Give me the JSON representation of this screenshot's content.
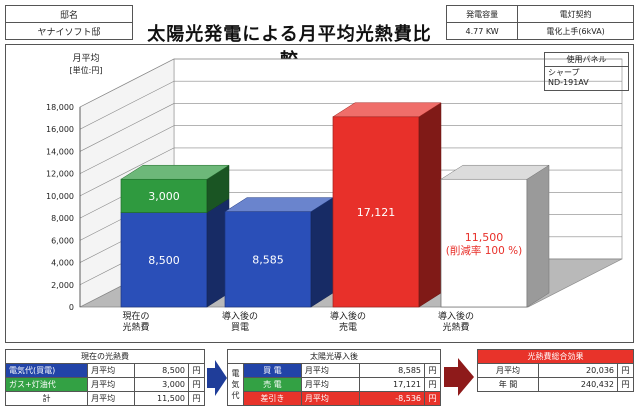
{
  "house": {
    "label": "邸名",
    "name": "ヤナイソフト邸"
  },
  "title": "太陽光発電による月平均光熱費比較",
  "capacity": {
    "label": "発電容量",
    "value": "4.77 KW",
    "contract_label": "電灯契約",
    "contract_value": "電化上手(6kVA)"
  },
  "panel": {
    "label": "使用パネル",
    "value_line1": "シャープ",
    "value_line2": "ND-191AV"
  },
  "chart_data": {
    "type": "bar",
    "ylabel_line1": "月平均",
    "ylabel_line2": "[単位:円]",
    "ylim": [
      0,
      18000
    ],
    "yticks": [
      "0",
      "2,000",
      "4,000",
      "6,000",
      "8,000",
      "10,000",
      "12,000",
      "14,000",
      "16,000",
      "18,000"
    ],
    "grid": true,
    "categories": [
      {
        "line1": "現在の",
        "line2": "光熱費"
      },
      {
        "line1": "導入後の",
        "line2": "買電"
      },
      {
        "line1": "導入後の",
        "line2": "売電"
      },
      {
        "line1": "導入後の",
        "line2": "光熱費"
      }
    ],
    "bars": [
      {
        "segments": [
          {
            "value": 8500,
            "label": "8,500",
            "color": "#2a4fb8"
          },
          {
            "value": 3000,
            "label": "3,000",
            "color": "#2f9a3f"
          }
        ]
      },
      {
        "segments": [
          {
            "value": 8585,
            "label": "8,585",
            "color": "#2a4fb8"
          }
        ]
      },
      {
        "segments": [
          {
            "value": 17121,
            "label": "17,121",
            "color": "#e8302a"
          }
        ]
      },
      {
        "segments": [
          {
            "value": 11500,
            "label": "11,500",
            "label2": "(削減率 100 %)",
            "color": "#ffffff"
          }
        ]
      }
    ]
  },
  "current": {
    "header": "現在の光熱費",
    "rows": [
      {
        "label": "電気代(買電)",
        "period": "月平均",
        "value": "8,500",
        "unit": "円"
      },
      {
        "label": "ガス+灯油代",
        "period": "月平均",
        "value": "3,000",
        "unit": "円"
      },
      {
        "label": "計",
        "period": "月平均",
        "value": "11,500",
        "unit": "円"
      }
    ]
  },
  "after": {
    "header": "太陽光導入後",
    "side": [
      "電",
      "気",
      "代"
    ],
    "rows": [
      {
        "label": "買 電",
        "period": "月平均",
        "value": "8,585",
        "unit": "円"
      },
      {
        "label": "売 電",
        "period": "月平均",
        "value": "17,121",
        "unit": "円"
      },
      {
        "label": "差引き",
        "period": "月平均",
        "value": "-8,536",
        "unit": "円"
      }
    ]
  },
  "effect": {
    "header": "光熱費総合効果",
    "rows": [
      {
        "label": "月平均",
        "value": "20,036",
        "unit": "円"
      },
      {
        "label": "年 間",
        "value": "240,432",
        "unit": "円"
      }
    ]
  },
  "colors": {
    "blue": "#2a4fb8",
    "green": "#2f9a3f",
    "red": "#e8302a",
    "arrow_blue": "#1f3d99",
    "arrow_red": "#8e1a1a"
  }
}
